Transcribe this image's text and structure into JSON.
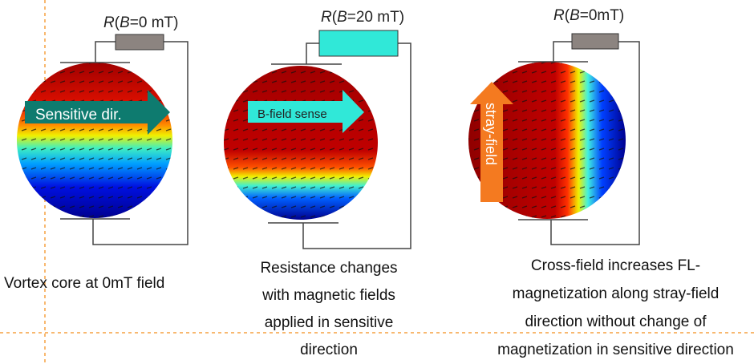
{
  "panels": [
    {
      "resistor_label": {
        "prefix": "R",
        "open": "(",
        "var": "B",
        "rest": "=0 mT)"
      },
      "resistor_color": "#8c8480",
      "arrow_label": "Sensitive dir.",
      "arrow_color": "#0e7b6f",
      "caption": [
        "Vortex core at 0mT field"
      ]
    },
    {
      "resistor_label": {
        "prefix": "R",
        "open": "(",
        "var": "B",
        "rest": "=20 mT)"
      },
      "resistor_color": "#30e8d8",
      "arrow_label": "B-field sense",
      "arrow_color": "#30e8d8",
      "caption": [
        "Resistance changes",
        "with magnetic fields",
        "applied in sensitive",
        "direction"
      ]
    },
    {
      "resistor_label": {
        "prefix": "R",
        "open": "(",
        "var": "B",
        "rest": "=0mT)"
      },
      "resistor_color": "#8c8480",
      "arrow_label": "stray-field",
      "arrow_color": "#f47a20",
      "caption": [
        "Cross-field increases FL-",
        "magnetization along stray-field",
        "direction without change of",
        "magnetization in sensitive direction"
      ]
    }
  ],
  "divider_color": "#f5a040"
}
